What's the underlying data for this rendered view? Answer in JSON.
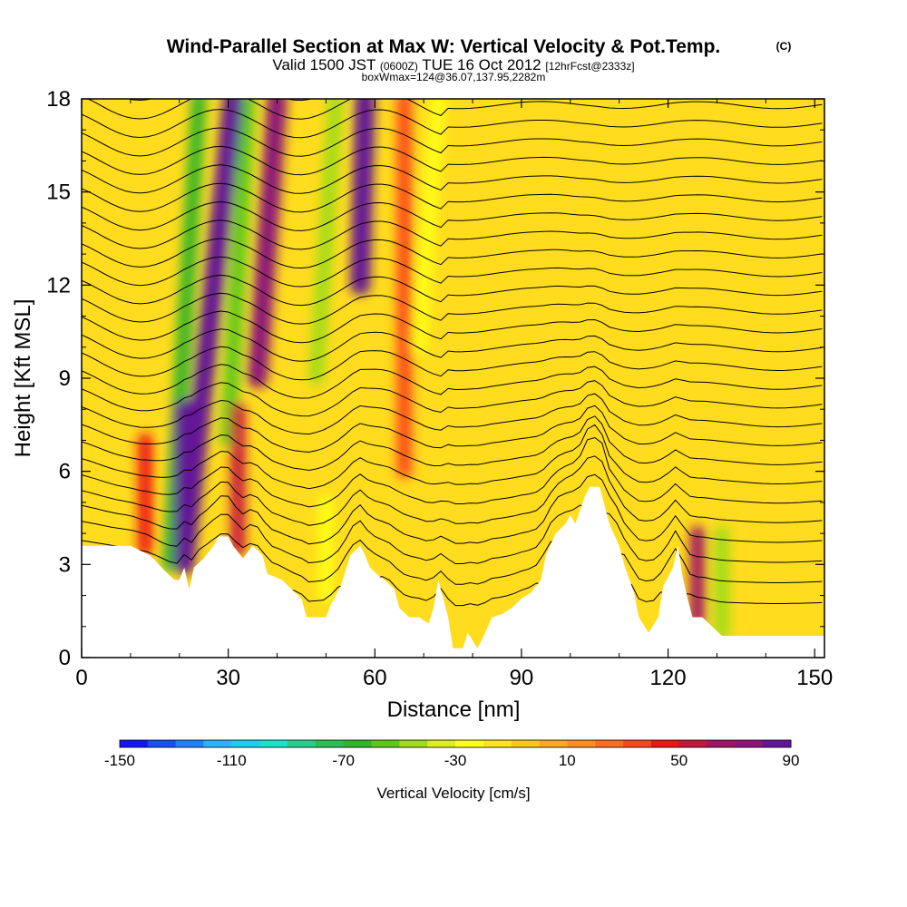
{
  "header": {
    "title": "Wind-Parallel Section at Max W: Vertical Velocity & Pot.Temp.",
    "copyright": "(C)",
    "valid_prefix": "Valid 1500 JST",
    "valid_z": "(0600Z)",
    "valid_date": "TUE 16 Oct 2012",
    "forecast": "[12hrFcst@2333z]",
    "box_info": "boxWmax=124@36.07,137.95,2282m"
  },
  "chart_data": {
    "type": "heatmap",
    "xlabel": "Distance [nm]",
    "ylabel": "Height [Kft MSL]",
    "xlim": [
      0,
      152
    ],
    "ylim": [
      0,
      18
    ],
    "x_ticks": [
      0,
      30,
      60,
      90,
      120,
      150
    ],
    "y_ticks": [
      0,
      3,
      6,
      9,
      12,
      15,
      18
    ],
    "x_tick_labels": [
      "0",
      "30",
      "60",
      "90",
      "120",
      "150"
    ],
    "y_tick_labels": [
      "0",
      "3",
      "6",
      "9",
      "12",
      "15",
      "18"
    ],
    "terrain": [
      [
        0,
        3.6
      ],
      [
        5,
        3.6
      ],
      [
        10,
        3.6
      ],
      [
        14,
        3.3
      ],
      [
        17,
        2.8
      ],
      [
        19,
        2.5
      ],
      [
        20,
        2.5
      ],
      [
        21,
        2.9
      ],
      [
        22,
        2.2
      ],
      [
        23,
        2.9
      ],
      [
        25,
        3.2
      ],
      [
        27,
        3.6
      ],
      [
        28,
        3.9
      ],
      [
        30,
        3.9
      ],
      [
        31,
        3.6
      ],
      [
        33,
        3.2
      ],
      [
        35,
        3.6
      ],
      [
        37,
        3.3
      ],
      [
        38,
        2.7
      ],
      [
        41,
        2.5
      ],
      [
        43,
        2.2
      ],
      [
        45,
        1.9
      ],
      [
        46,
        1.3
      ],
      [
        48,
        1.3
      ],
      [
        50,
        1.3
      ],
      [
        51,
        1.7
      ],
      [
        53,
        2.3
      ],
      [
        55,
        3.3
      ],
      [
        57,
        3.6
      ],
      [
        58,
        3.3
      ],
      [
        59,
        2.9
      ],
      [
        61,
        2.6
      ],
      [
        62,
        2.5
      ],
      [
        64,
        2.2
      ],
      [
        65,
        1.6
      ],
      [
        67,
        1.3
      ],
      [
        69,
        1.3
      ],
      [
        71,
        1.1
      ],
      [
        72,
        1.6
      ],
      [
        73,
        2.5
      ],
      [
        75,
        1.3
      ],
      [
        76,
        0.3
      ],
      [
        78,
        0.3
      ],
      [
        79,
        0.8
      ],
      [
        81,
        0.3
      ],
      [
        82,
        0.6
      ],
      [
        84,
        1.3
      ],
      [
        86,
        1.4
      ],
      [
        88,
        1.6
      ],
      [
        90,
        1.9
      ],
      [
        92,
        2.1
      ],
      [
        94,
        2.5
      ],
      [
        95,
        3.3
      ],
      [
        97,
        4.0
      ],
      [
        99,
        4.3
      ],
      [
        100,
        4.6
      ],
      [
        101,
        4.3
      ],
      [
        103,
        5.2
      ],
      [
        104,
        5.5
      ],
      [
        106,
        5.5
      ],
      [
        107,
        4.9
      ],
      [
        108,
        4.3
      ],
      [
        110,
        3.6
      ],
      [
        111,
        3.0
      ],
      [
        113,
        2.1
      ],
      [
        114,
        1.3
      ],
      [
        116,
        0.8
      ],
      [
        118,
        1.3
      ],
      [
        119,
        2.3
      ],
      [
        121,
        2.9
      ],
      [
        122,
        3.6
      ],
      [
        123,
        2.6
      ],
      [
        124,
        1.9
      ],
      [
        125,
        1.3
      ],
      [
        127,
        1.3
      ],
      [
        129,
        1.0
      ],
      [
        131,
        0.7
      ],
      [
        135,
        0.7
      ],
      [
        140,
        0.7
      ],
      [
        145,
        0.7
      ],
      [
        150,
        0.7
      ],
      [
        152,
        0.7
      ]
    ],
    "updraft_bands": [
      {
        "x": [
          21,
          31
        ],
        "y": [
          3,
          18
        ],
        "w": 84
      },
      {
        "x": [
          36,
          40
        ],
        "y": [
          9,
          18
        ],
        "w": 78
      },
      {
        "x": [
          57,
          58
        ],
        "y": [
          12,
          18
        ],
        "w": 86
      },
      {
        "x": [
          21,
          21
        ],
        "y": [
          3,
          8
        ],
        "w": 92
      },
      {
        "x": [
          13,
          13
        ],
        "y": [
          3.5,
          7
        ],
        "w": 42
      },
      {
        "x": [
          32,
          32
        ],
        "y": [
          3.5,
          8
        ],
        "w": 55
      },
      {
        "x": [
          126,
          126
        ],
        "y": [
          1.2,
          4
        ],
        "w": 68
      },
      {
        "x": [
          66,
          66
        ],
        "y": [
          6,
          18
        ],
        "w": 30
      }
    ],
    "downdraft_bands": [
      {
        "x": [
          18,
          24
        ],
        "y": [
          3,
          18
        ],
        "w": -65
      },
      {
        "x": [
          30,
          34
        ],
        "y": [
          7,
          18
        ],
        "w": -55
      },
      {
        "x": [
          48,
          52
        ],
        "y": [
          9,
          18
        ],
        "w": -50
      },
      {
        "x": [
          69,
          73
        ],
        "y": [
          10,
          18
        ],
        "w": -30
      },
      {
        "x": [
          131,
          131
        ],
        "y": [
          0.8,
          4
        ],
        "w": -45
      },
      {
        "x": [
          50,
          50
        ],
        "y": [
          2,
          5
        ],
        "w": -30
      }
    ],
    "colorbar": {
      "label": "Vertical Velocity [cm/s]",
      "ticks": [
        "-150",
        "-110",
        "-70",
        "-30",
        "10",
        "50",
        "90"
      ],
      "colors": [
        "#1414ff",
        "#1450ff",
        "#1e82ff",
        "#28b4ff",
        "#14d2f0",
        "#14e6c8",
        "#1ed28c",
        "#28be50",
        "#32b428",
        "#5ac814",
        "#a0dc14",
        "#dcf014",
        "#ffff14",
        "#ffe614",
        "#ffc814",
        "#ffaa1e",
        "#ff8c1e",
        "#ff6e1e",
        "#ff461e",
        "#f01414",
        "#c8143c",
        "#a01464",
        "#8c1478",
        "#641496"
      ]
    }
  }
}
